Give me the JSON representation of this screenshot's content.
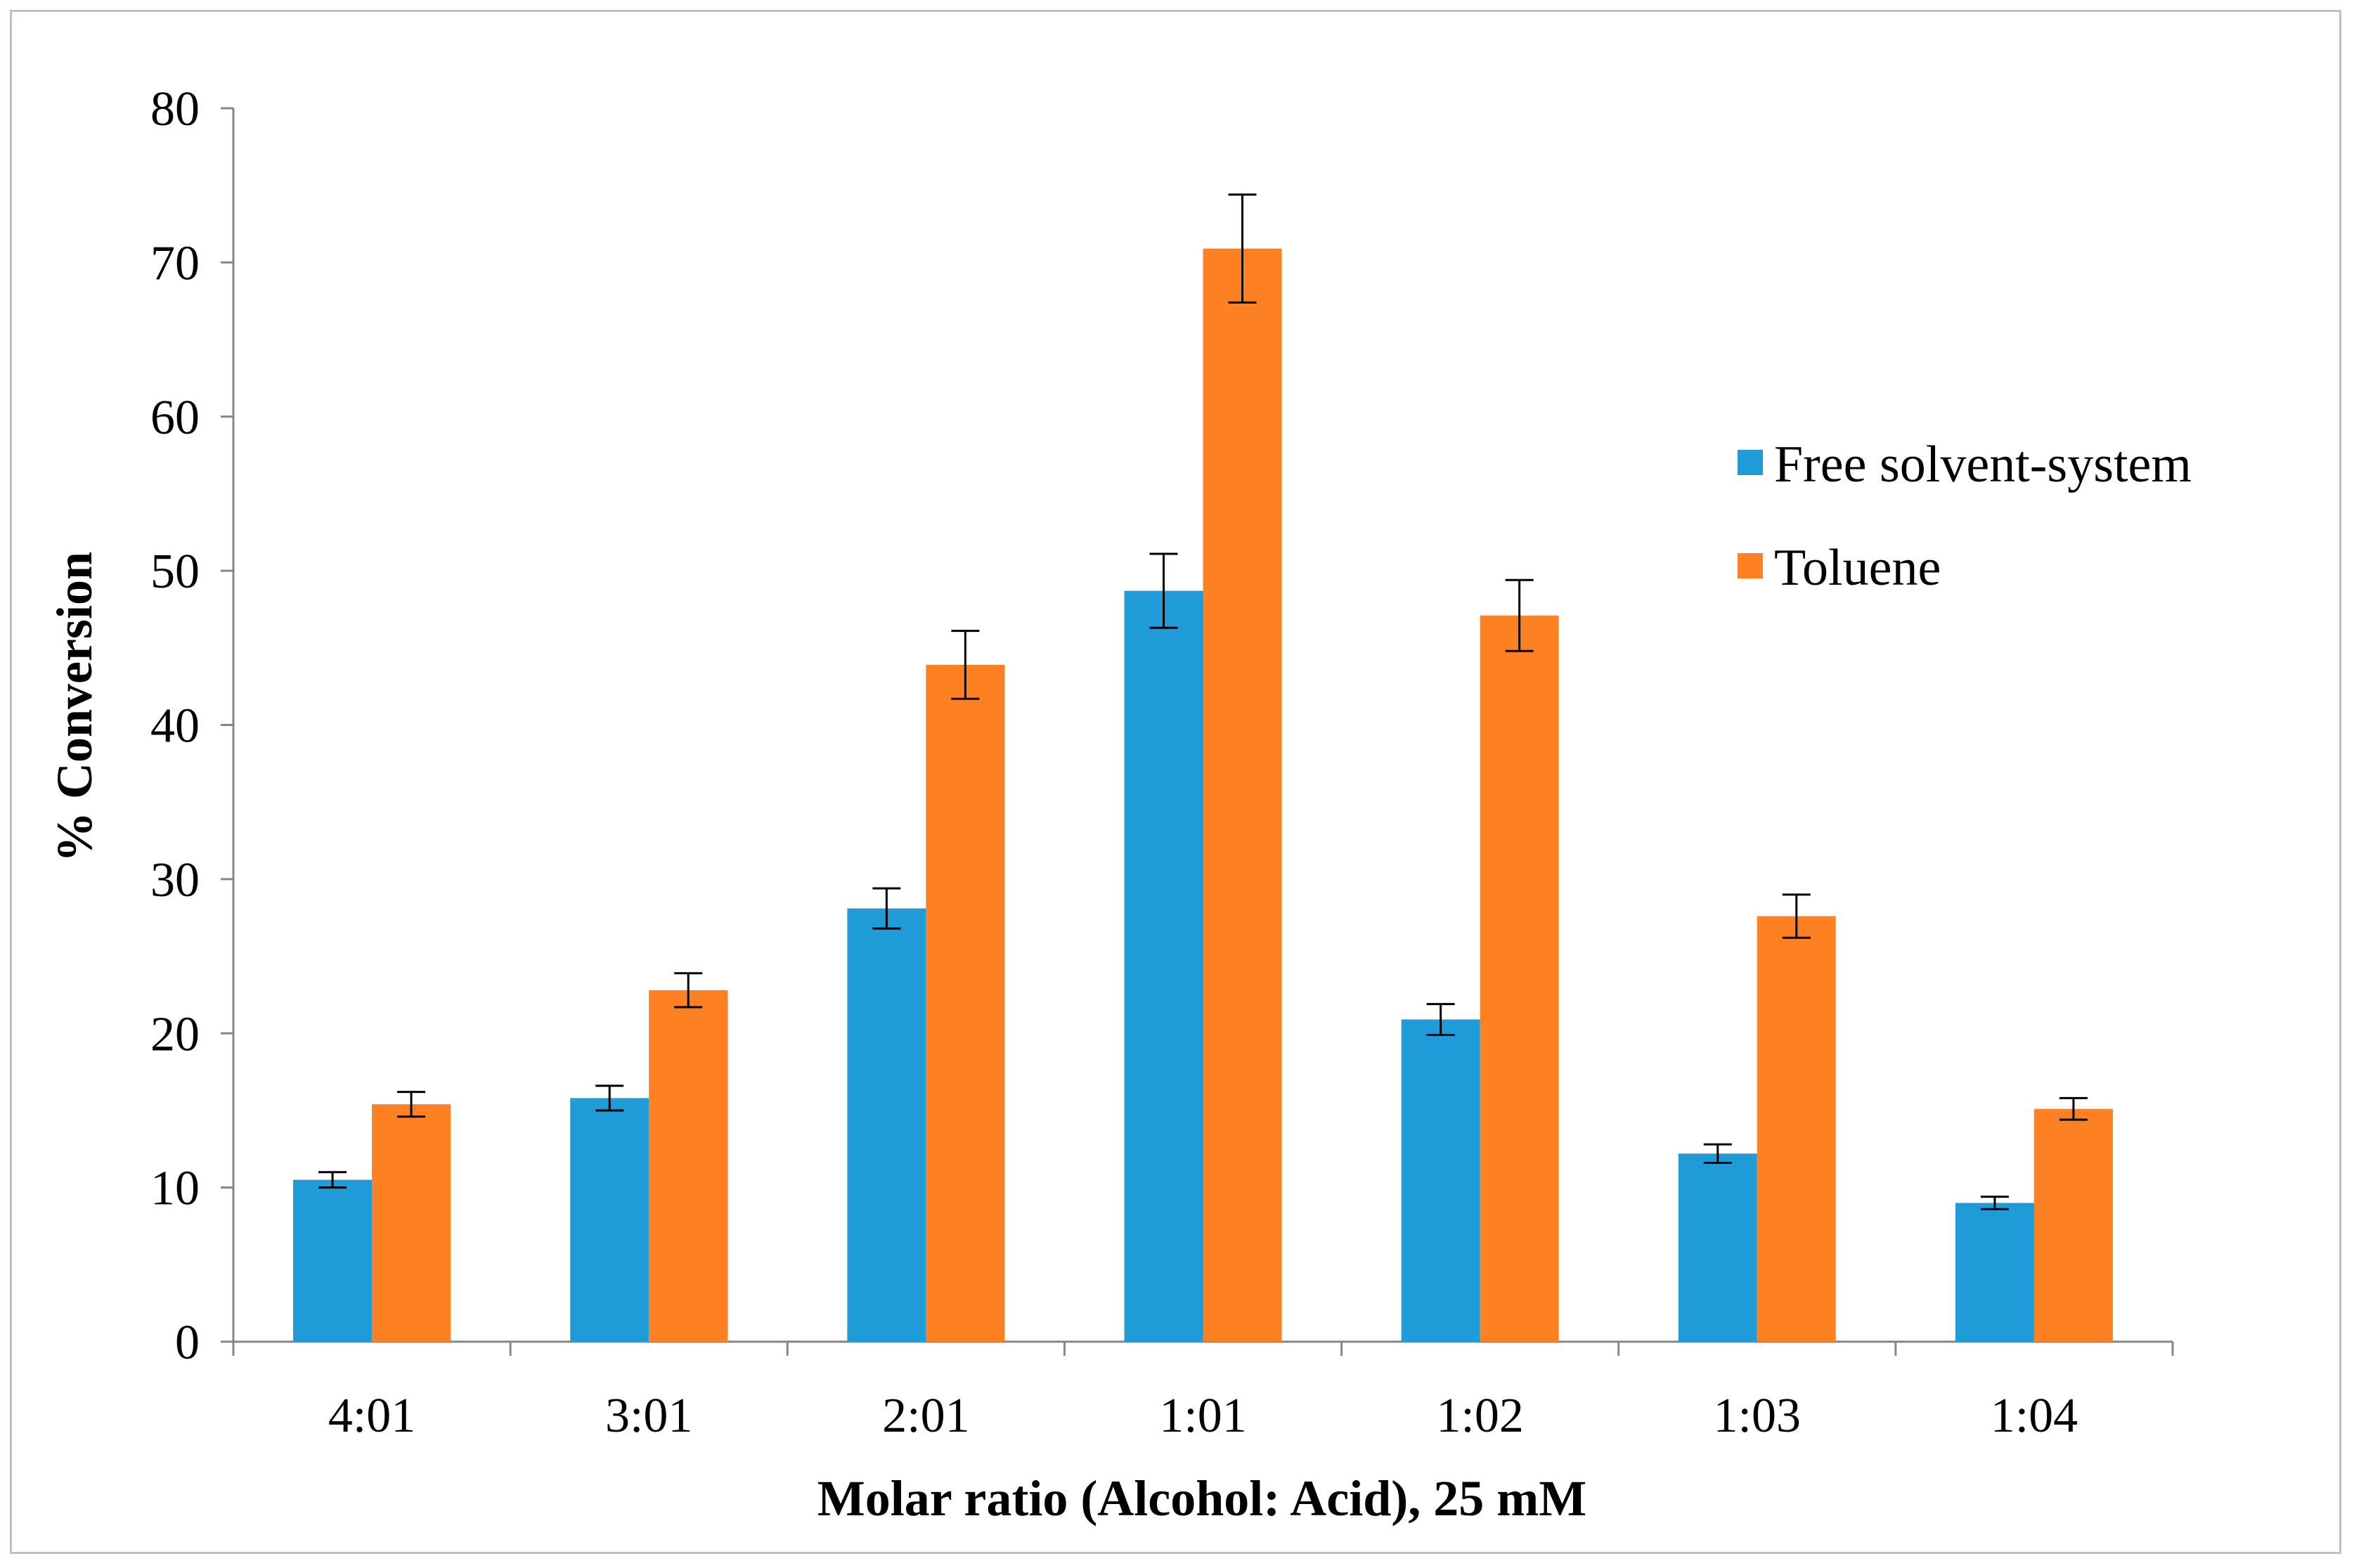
{
  "chart_data": {
    "type": "bar",
    "title": "",
    "xlabel": "Molar ratio (Alcohol: Acid), 25 mM",
    "ylabel": "% Conversion",
    "ylim": [
      0,
      80
    ],
    "yticks": [
      0,
      10,
      20,
      30,
      40,
      50,
      60,
      70,
      80
    ],
    "categories": [
      "4:01",
      "3:01",
      "2:01",
      "1:01",
      "1:02",
      "1:03",
      "1:04"
    ],
    "legend_position": "right",
    "series": [
      {
        "name": "Free solvent-system",
        "color": "#1f9bd7",
        "values": [
          10.5,
          15.8,
          28.1,
          48.7,
          20.9,
          12.2,
          9.0
        ],
        "errors": [
          0.5,
          0.8,
          1.3,
          2.4,
          1.0,
          0.6,
          0.4
        ]
      },
      {
        "name": "Toluene",
        "color": "#fd8023",
        "values": [
          15.4,
          22.8,
          43.9,
          70.9,
          47.1,
          27.6,
          15.1
        ],
        "errors": [
          0.8,
          1.1,
          2.2,
          3.5,
          2.3,
          1.4,
          0.7
        ]
      }
    ]
  }
}
